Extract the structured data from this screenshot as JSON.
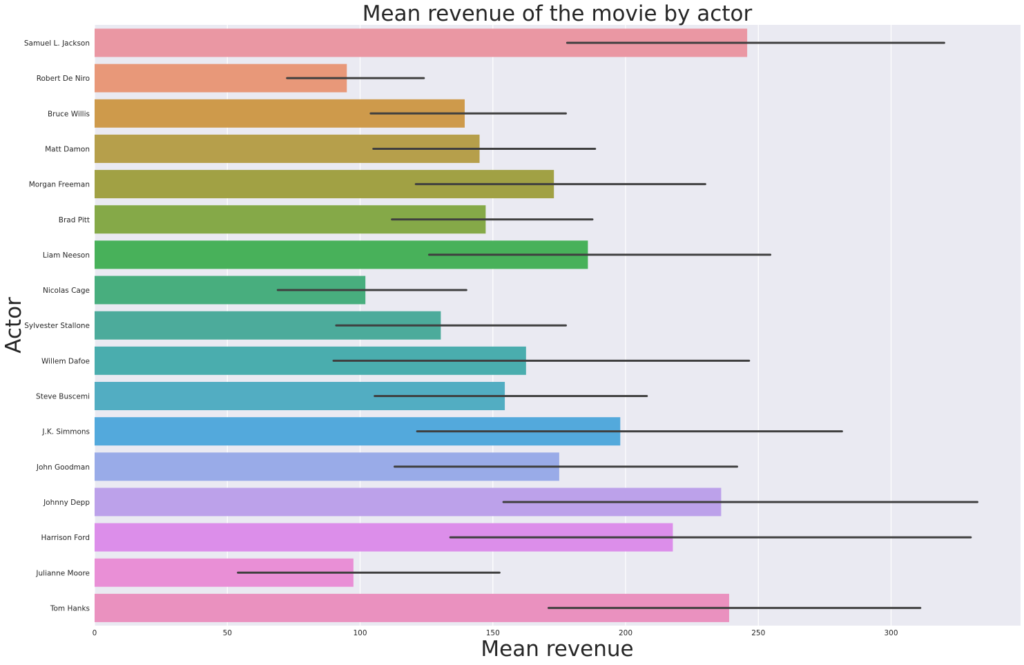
{
  "chart_data": {
    "type": "bar",
    "orientation": "horizontal",
    "title": "Mean revenue of the movie by actor",
    "xlabel": "Mean revenue",
    "ylabel": "Actor",
    "xlim": [
      0,
      348
    ],
    "xticks": [
      0,
      50,
      100,
      150,
      200,
      250,
      300
    ],
    "grid": true,
    "background": "#eaeaf2",
    "errorbar_color": "#3f3f3f",
    "categories": [
      "Samuel L. Jackson",
      "Robert De Niro",
      "Bruce Willis",
      "Matt Damon",
      "Morgan Freeman",
      "Brad Pitt",
      "Liam Neeson",
      "Nicolas Cage",
      "Sylvester Stallone",
      "Willem Dafoe",
      "Steve Buscemi",
      "J.K. Simmons",
      "John Goodman",
      "Johnny Depp",
      "Harrison Ford",
      "Julianne Moore",
      "Tom Hanks"
    ],
    "values": [
      245.8,
      95.0,
      139.4,
      145.0,
      173.0,
      147.3,
      185.8,
      102.0,
      130.4,
      162.5,
      154.5,
      198.0,
      175.0,
      236.0,
      217.8,
      97.5,
      239.0
    ],
    "ci_low": [
      178.0,
      72.5,
      104.0,
      105.0,
      121.0,
      112.0,
      126.0,
      69.0,
      91.0,
      90.0,
      105.5,
      121.5,
      113.0,
      154.0,
      134.0,
      54.0,
      171.0
    ],
    "ci_high": [
      320.0,
      124.0,
      177.5,
      188.5,
      230.0,
      187.5,
      254.5,
      140.0,
      177.5,
      246.5,
      208.0,
      281.5,
      242.0,
      332.5,
      330.0,
      152.5,
      311.0
    ],
    "colors": [
      "#ea97a3",
      "#e89879",
      "#ce9a4b",
      "#b69f4b",
      "#a1a144",
      "#85a948",
      "#48b15a",
      "#48ae7e",
      "#4cab9b",
      "#4aadae",
      "#52adc2",
      "#53a9dc",
      "#99abe8",
      "#bca1ea",
      "#dc8eea",
      "#e98fd6",
      "#ea91bf"
    ]
  }
}
